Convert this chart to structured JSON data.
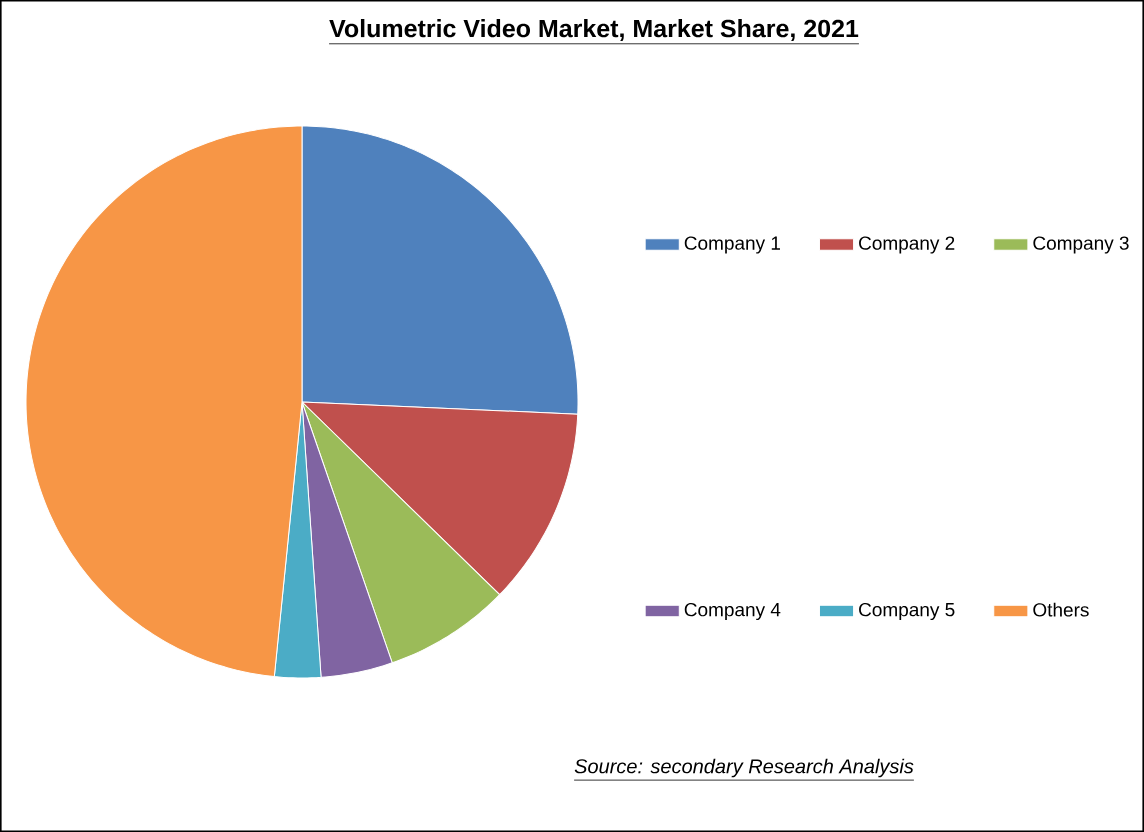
{
  "chart_data": {
    "type": "pie",
    "title": "Volumetric Video Market, Market Share, 2021",
    "categories": [
      "Company 1",
      "Company 2",
      "Company 3",
      "Company 4",
      "Company 5",
      "Others"
    ],
    "values": [
      25.7,
      11.6,
      7.4,
      4.2,
      2.7,
      48.4
    ],
    "colors": [
      "#4f81bd",
      "#c0504d",
      "#9bbb59",
      "#8064a2",
      "#4bacc6",
      "#f79646"
    ],
    "legend": "right",
    "annotations": [
      "Source: secondary Research Analysis"
    ]
  }
}
